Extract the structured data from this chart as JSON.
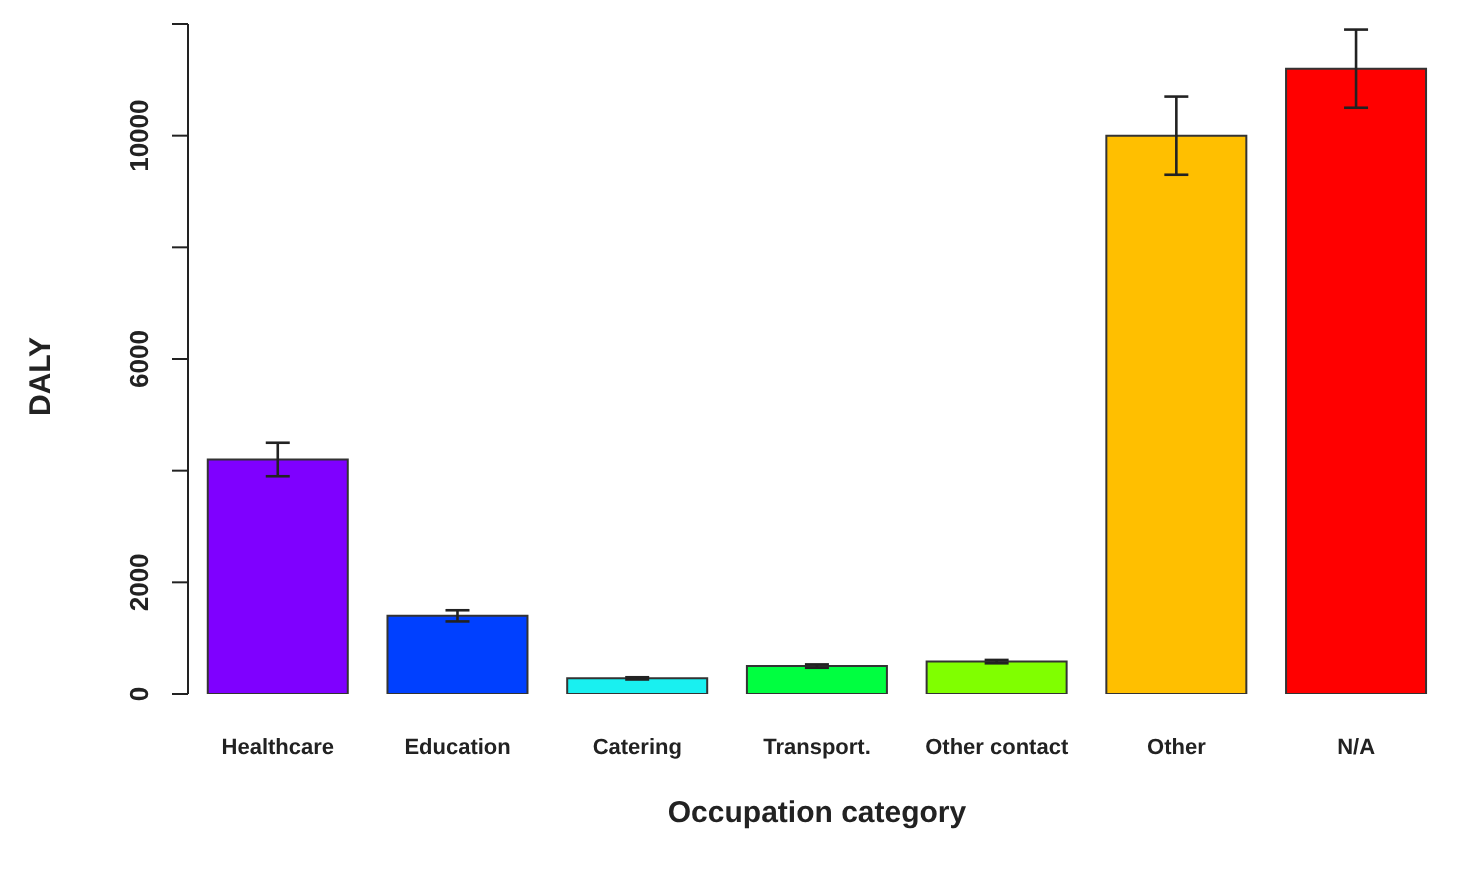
{
  "chart_data": {
    "type": "bar",
    "xlabel": "Occupation category",
    "ylabel": "DALY",
    "categories": [
      "Healthcare",
      "Education",
      "Catering",
      "Transport.",
      "Other contact",
      "Other",
      "N/A"
    ],
    "values": [
      4200,
      1400,
      280,
      500,
      580,
      10000,
      11200
    ],
    "errors": [
      300,
      100,
      20,
      30,
      30,
      700,
      700
    ],
    "colors": [
      "#7f00ff",
      "#0040ff",
      "#19f0f0",
      "#00ff40",
      "#80ff00",
      "#ffbf00",
      "#ff0000"
    ],
    "ylim": [
      0,
      12000
    ],
    "yticks": [
      0,
      2000,
      {
        "value": 4000,
        "label": null
      },
      6000,
      {
        "value": 8000,
        "label": null
      },
      10000,
      {
        "value": 12000,
        "label": null
      }
    ],
    "grid": false
  }
}
